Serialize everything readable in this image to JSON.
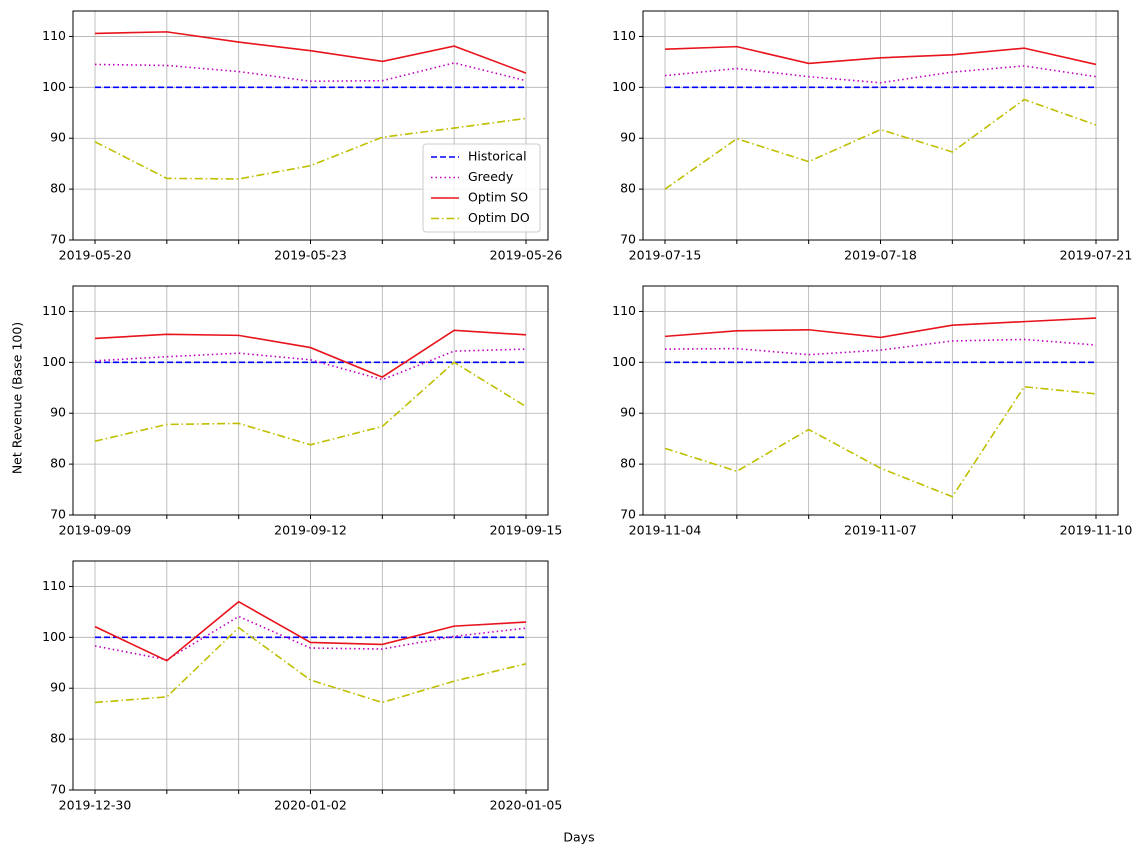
{
  "xlabel": "Days",
  "ylabel": "Net Revenue (Base 100)",
  "chart_data": [
    {
      "type": "line",
      "categories": [
        "2019-05-20",
        null,
        null,
        "2019-05-23",
        null,
        null,
        "2019-05-26"
      ],
      "ylim": [
        70,
        115
      ],
      "yticks": [
        70,
        80,
        90,
        100,
        110
      ],
      "grid": true,
      "legend": "lower right",
      "series": [
        {
          "name": "Historical",
          "color": "#0000ff",
          "style": "dashed",
          "values": [
            100,
            100,
            100,
            100,
            100,
            100,
            100
          ]
        },
        {
          "name": "Greedy",
          "color": "#bf00bf",
          "style": "dotted",
          "values": [
            104.5,
            104.3,
            103.1,
            101.2,
            101.3,
            104.8,
            101.3
          ]
        },
        {
          "name": "Optim SO",
          "color": "#e8141c",
          "style": "solid",
          "values": [
            110.6,
            110.9,
            108.9,
            107.2,
            105.1,
            108.1,
            102.8
          ]
        },
        {
          "name": "Optim DO",
          "color": "#bfbf00",
          "style": "dashdot",
          "values": [
            89.3,
            82.1,
            82.0,
            84.6,
            90.2,
            92.0,
            93.9
          ]
        }
      ]
    },
    {
      "type": "line",
      "categories": [
        "2019-07-15",
        null,
        null,
        "2019-07-18",
        null,
        null,
        "2019-07-21"
      ],
      "ylim": [
        70,
        115
      ],
      "yticks": [
        70,
        80,
        90,
        100,
        110
      ],
      "grid": true,
      "series": [
        {
          "color": "#0000ff",
          "style": "dashed",
          "values": [
            100,
            100,
            100,
            100,
            100,
            100,
            100
          ]
        },
        {
          "color": "#bf00bf",
          "style": "dotted",
          "values": [
            102.3,
            103.7,
            102.1,
            100.9,
            103.0,
            104.2,
            102.1
          ]
        },
        {
          "color": "#e8141c",
          "style": "solid",
          "values": [
            107.5,
            108.0,
            104.7,
            105.8,
            106.4,
            107.7,
            104.5
          ]
        },
        {
          "color": "#bfbf00",
          "style": "dashdot",
          "values": [
            80.0,
            89.9,
            85.4,
            91.7,
            87.3,
            97.6,
            92.6
          ]
        }
      ]
    },
    {
      "type": "line",
      "categories": [
        "2019-09-09",
        null,
        null,
        "2019-09-12",
        null,
        null,
        "2019-09-15"
      ],
      "ylim": [
        70,
        115
      ],
      "yticks": [
        70,
        80,
        90,
        100,
        110
      ],
      "grid": true,
      "series": [
        {
          "color": "#0000ff",
          "style": "dashed",
          "values": [
            100,
            100,
            100,
            100,
            100,
            100,
            100
          ]
        },
        {
          "color": "#bf00bf",
          "style": "dotted",
          "values": [
            100.3,
            101.1,
            101.8,
            100.5,
            96.6,
            102.2,
            102.6
          ]
        },
        {
          "color": "#e8141c",
          "style": "solid",
          "values": [
            104.7,
            105.5,
            105.3,
            102.9,
            97.1,
            106.3,
            105.4
          ]
        },
        {
          "color": "#bfbf00",
          "style": "dashdot",
          "values": [
            84.5,
            87.8,
            88.0,
            83.8,
            87.4,
            100.0,
            91.3
          ]
        }
      ]
    },
    {
      "type": "line",
      "categories": [
        "2019-11-04",
        null,
        null,
        "2019-11-07",
        null,
        null,
        "2019-11-10"
      ],
      "ylim": [
        70,
        115
      ],
      "yticks": [
        70,
        80,
        90,
        100,
        110
      ],
      "grid": true,
      "series": [
        {
          "color": "#0000ff",
          "style": "dashed",
          "values": [
            100,
            100,
            100,
            100,
            100,
            100,
            100
          ]
        },
        {
          "color": "#bf00bf",
          "style": "dotted",
          "values": [
            102.6,
            102.7,
            101.5,
            102.4,
            104.2,
            104.5,
            103.4
          ]
        },
        {
          "color": "#e8141c",
          "style": "solid",
          "values": [
            105.1,
            106.2,
            106.4,
            104.9,
            107.3,
            108.0,
            108.7
          ]
        },
        {
          "color": "#bfbf00",
          "style": "dashdot",
          "values": [
            83.1,
            78.6,
            86.8,
            79.2,
            73.6,
            95.2,
            93.8
          ]
        }
      ]
    },
    {
      "type": "line",
      "categories": [
        "2019-12-30",
        null,
        null,
        "2020-01-02",
        null,
        null,
        "2020-01-05"
      ],
      "ylim": [
        70,
        115
      ],
      "yticks": [
        70,
        80,
        90,
        100,
        110
      ],
      "grid": true,
      "series": [
        {
          "color": "#0000ff",
          "style": "dashed",
          "values": [
            100,
            100,
            100,
            100,
            100,
            100,
            100
          ]
        },
        {
          "color": "#bf00bf",
          "style": "dotted",
          "values": [
            98.3,
            95.6,
            104.1,
            97.9,
            97.7,
            100.2,
            101.8
          ]
        },
        {
          "color": "#e8141c",
          "style": "solid",
          "values": [
            102.1,
            95.4,
            107.0,
            99.0,
            98.6,
            102.2,
            103.0
          ]
        },
        {
          "color": "#bfbf00",
          "style": "dashdot",
          "values": [
            87.2,
            88.3,
            101.9,
            91.6,
            87.2,
            91.4,
            94.8
          ]
        }
      ]
    }
  ]
}
